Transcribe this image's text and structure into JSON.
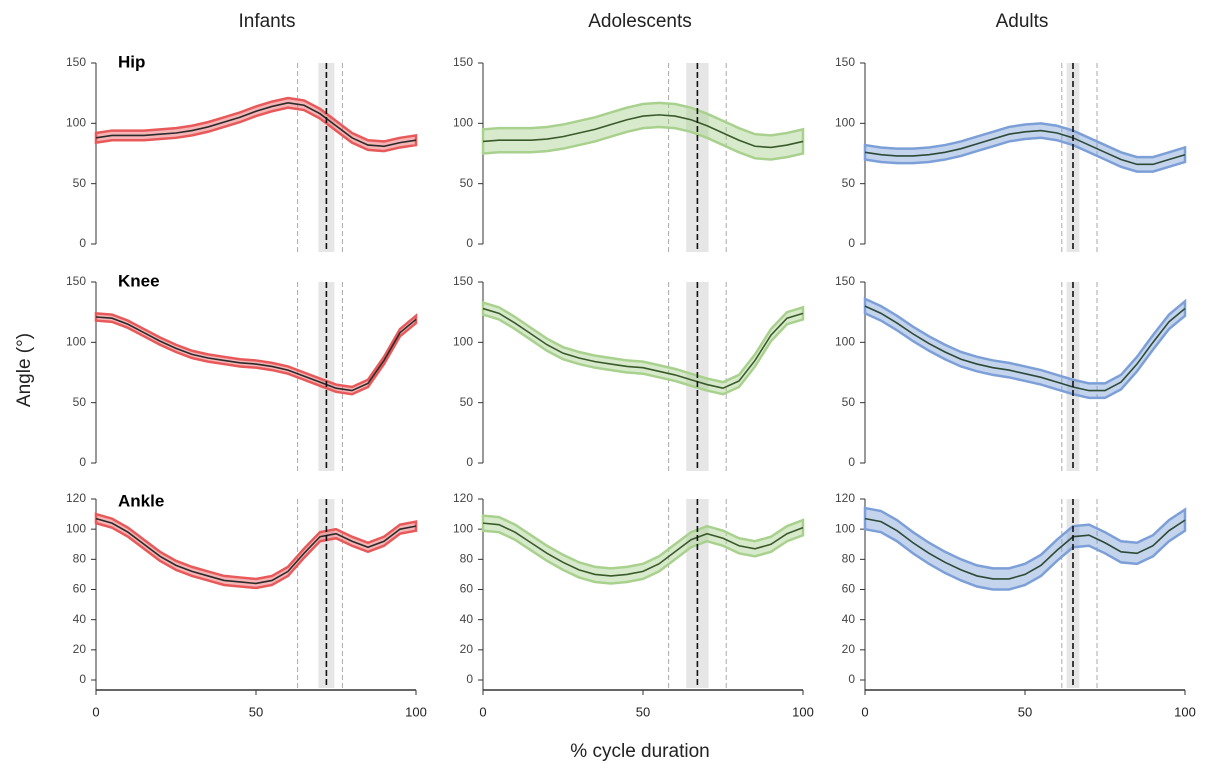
{
  "figure": {
    "columns": [
      "Infants",
      "Adolescents",
      "Adults"
    ],
    "rows": [
      "Hip",
      "Knee",
      "Ankle"
    ],
    "xlabel": "% cycle duration",
    "ylabel": "Angle (°)"
  },
  "chart_data": [
    {
      "type": "line",
      "x": [
        0,
        5,
        10,
        15,
        20,
        25,
        30,
        35,
        40,
        45,
        50,
        55,
        60,
        65,
        70,
        75,
        80,
        85,
        90,
        95,
        100
      ],
      "xlim": [
        0,
        100
      ],
      "ylim": [
        0,
        150
      ],
      "yticks": [
        0,
        50,
        100,
        150
      ],
      "series": [
        {
          "color": "#2b2b2b",
          "band_color": "#e8595a",
          "sd": 4,
          "values": [
            88,
            90,
            90,
            90,
            91,
            92,
            94,
            97,
            101,
            105,
            110,
            114,
            117,
            115,
            108,
            98,
            88,
            82,
            81,
            84,
            86
          ]
        }
      ],
      "events": {
        "mean": 72,
        "sd": 2.5,
        "range": [
          63,
          77
        ]
      }
    },
    {
      "type": "line",
      "x": [
        0,
        5,
        10,
        15,
        20,
        25,
        30,
        35,
        40,
        45,
        50,
        55,
        60,
        65,
        70,
        75,
        80,
        85,
        90,
        95,
        100
      ],
      "xlim": [
        0,
        100
      ],
      "ylim": [
        0,
        150
      ],
      "yticks": [
        0,
        50,
        100,
        150
      ],
      "series": [
        {
          "color": "#3b5a2c",
          "band_color": "#a9d18e",
          "sd": 10,
          "values": [
            85,
            86,
            86,
            86,
            87,
            89,
            92,
            95,
            99,
            103,
            106,
            107,
            106,
            103,
            98,
            92,
            86,
            81,
            80,
            82,
            85
          ]
        }
      ],
      "events": {
        "mean": 67,
        "sd": 3.5,
        "range": [
          58,
          76
        ]
      }
    },
    {
      "type": "line",
      "x": [
        0,
        5,
        10,
        15,
        20,
        25,
        30,
        35,
        40,
        45,
        50,
        55,
        60,
        65,
        70,
        75,
        80,
        85,
        90,
        95,
        100
      ],
      "xlim": [
        0,
        100
      ],
      "ylim": [
        0,
        150
      ],
      "yticks": [
        0,
        50,
        100,
        150
      ],
      "series": [
        {
          "color": "#2e4a36",
          "band_color": "#7c9fd8",
          "sd": 6,
          "values": [
            76,
            74,
            73,
            73,
            74,
            76,
            79,
            83,
            87,
            91,
            93,
            94,
            92,
            88,
            82,
            76,
            70,
            66,
            66,
            70,
            74
          ]
        }
      ],
      "events": {
        "mean": 65,
        "sd": 2,
        "range": [
          61.5,
          72.5
        ]
      }
    },
    {
      "type": "line",
      "x": [
        0,
        5,
        10,
        15,
        20,
        25,
        30,
        35,
        40,
        45,
        50,
        55,
        60,
        65,
        70,
        75,
        80,
        85,
        90,
        95,
        100
      ],
      "xlim": [
        0,
        100
      ],
      "ylim": [
        0,
        150
      ],
      "yticks": [
        0,
        50,
        100,
        150
      ],
      "series": [
        {
          "color": "#2b2b2b",
          "band_color": "#e8595a",
          "sd": 3,
          "values": [
            121,
            120,
            115,
            108,
            101,
            95,
            90,
            87,
            85,
            83,
            82,
            80,
            77,
            72,
            67,
            62,
            60,
            66,
            85,
            108,
            119
          ]
        }
      ],
      "events": {
        "mean": 72,
        "sd": 2.5,
        "range": [
          63,
          77
        ]
      }
    },
    {
      "type": "line",
      "x": [
        0,
        5,
        10,
        15,
        20,
        25,
        30,
        35,
        40,
        45,
        50,
        55,
        60,
        65,
        70,
        75,
        80,
        85,
        90,
        95,
        100
      ],
      "xlim": [
        0,
        100
      ],
      "ylim": [
        0,
        150
      ],
      "yticks": [
        0,
        50,
        100,
        150
      ],
      "series": [
        {
          "color": "#3b5a2c",
          "band_color": "#a9d18e",
          "sd": 5,
          "values": [
            128,
            124,
            116,
            107,
            98,
            91,
            87,
            84,
            82,
            80,
            79,
            76,
            73,
            69,
            65,
            62,
            68,
            85,
            106,
            120,
            124
          ]
        }
      ],
      "events": {
        "mean": 67,
        "sd": 3.5,
        "range": [
          58,
          76
        ]
      }
    },
    {
      "type": "line",
      "x": [
        0,
        5,
        10,
        15,
        20,
        25,
        30,
        35,
        40,
        45,
        50,
        55,
        60,
        65,
        70,
        75,
        80,
        85,
        90,
        95,
        100
      ],
      "xlim": [
        0,
        100
      ],
      "ylim": [
        0,
        150
      ],
      "yticks": [
        0,
        50,
        100,
        150
      ],
      "series": [
        {
          "color": "#2e4a36",
          "band_color": "#7c9fd8",
          "sd": 6,
          "values": [
            130,
            124,
            116,
            107,
            99,
            92,
            86,
            82,
            79,
            77,
            74,
            71,
            67,
            63,
            60,
            60,
            67,
            82,
            100,
            117,
            128
          ]
        }
      ],
      "events": {
        "mean": 65,
        "sd": 2,
        "range": [
          61.5,
          72.5
        ]
      }
    },
    {
      "type": "line",
      "x": [
        0,
        5,
        10,
        15,
        20,
        25,
        30,
        35,
        40,
        45,
        50,
        55,
        60,
        65,
        70,
        75,
        80,
        85,
        90,
        95,
        100
      ],
      "xlim": [
        0,
        100
      ],
      "xticks": [
        0,
        50,
        100
      ],
      "ylim": [
        0,
        120
      ],
      "yticks": [
        0,
        20,
        40,
        60,
        80,
        100,
        120
      ],
      "series": [
        {
          "color": "#2b2b2b",
          "band_color": "#e8595a",
          "sd": 3,
          "values": [
            107,
            104,
            98,
            90,
            82,
            76,
            72,
            69,
            66,
            65,
            64,
            66,
            72,
            84,
            95,
            97,
            92,
            88,
            92,
            100,
            102
          ]
        }
      ],
      "events": {
        "mean": 72,
        "sd": 2.5,
        "range": [
          63,
          77
        ]
      }
    },
    {
      "type": "line",
      "x": [
        0,
        5,
        10,
        15,
        20,
        25,
        30,
        35,
        40,
        45,
        50,
        55,
        60,
        65,
        70,
        75,
        80,
        85,
        90,
        95,
        100
      ],
      "xlim": [
        0,
        100
      ],
      "xticks": [
        0,
        50,
        100
      ],
      "ylim": [
        0,
        120
      ],
      "yticks": [
        0,
        20,
        40,
        60,
        80,
        100,
        120
      ],
      "series": [
        {
          "color": "#3b5a2c",
          "band_color": "#a9d18e",
          "sd": 5,
          "values": [
            104,
            103,
            98,
            91,
            84,
            78,
            73,
            70,
            69,
            70,
            72,
            77,
            85,
            93,
            97,
            94,
            89,
            87,
            90,
            97,
            101
          ]
        }
      ],
      "events": {
        "mean": 67,
        "sd": 3.5,
        "range": [
          58,
          76
        ]
      }
    },
    {
      "type": "line",
      "x": [
        0,
        5,
        10,
        15,
        20,
        25,
        30,
        35,
        40,
        45,
        50,
        55,
        60,
        65,
        70,
        75,
        80,
        85,
        90,
        95,
        100
      ],
      "xlim": [
        0,
        100
      ],
      "xticks": [
        0,
        50,
        100
      ],
      "ylim": [
        0,
        120
      ],
      "yticks": [
        0,
        20,
        40,
        60,
        80,
        100,
        120
      ],
      "series": [
        {
          "color": "#2e4a36",
          "band_color": "#7c9fd8",
          "sd": 7,
          "values": [
            107,
            105,
            99,
            91,
            84,
            78,
            73,
            69,
            67,
            67,
            70,
            76,
            86,
            95,
            96,
            91,
            85,
            84,
            89,
            99,
            106
          ]
        }
      ],
      "events": {
        "mean": 65,
        "sd": 2,
        "range": [
          61.5,
          72.5
        ]
      }
    }
  ]
}
